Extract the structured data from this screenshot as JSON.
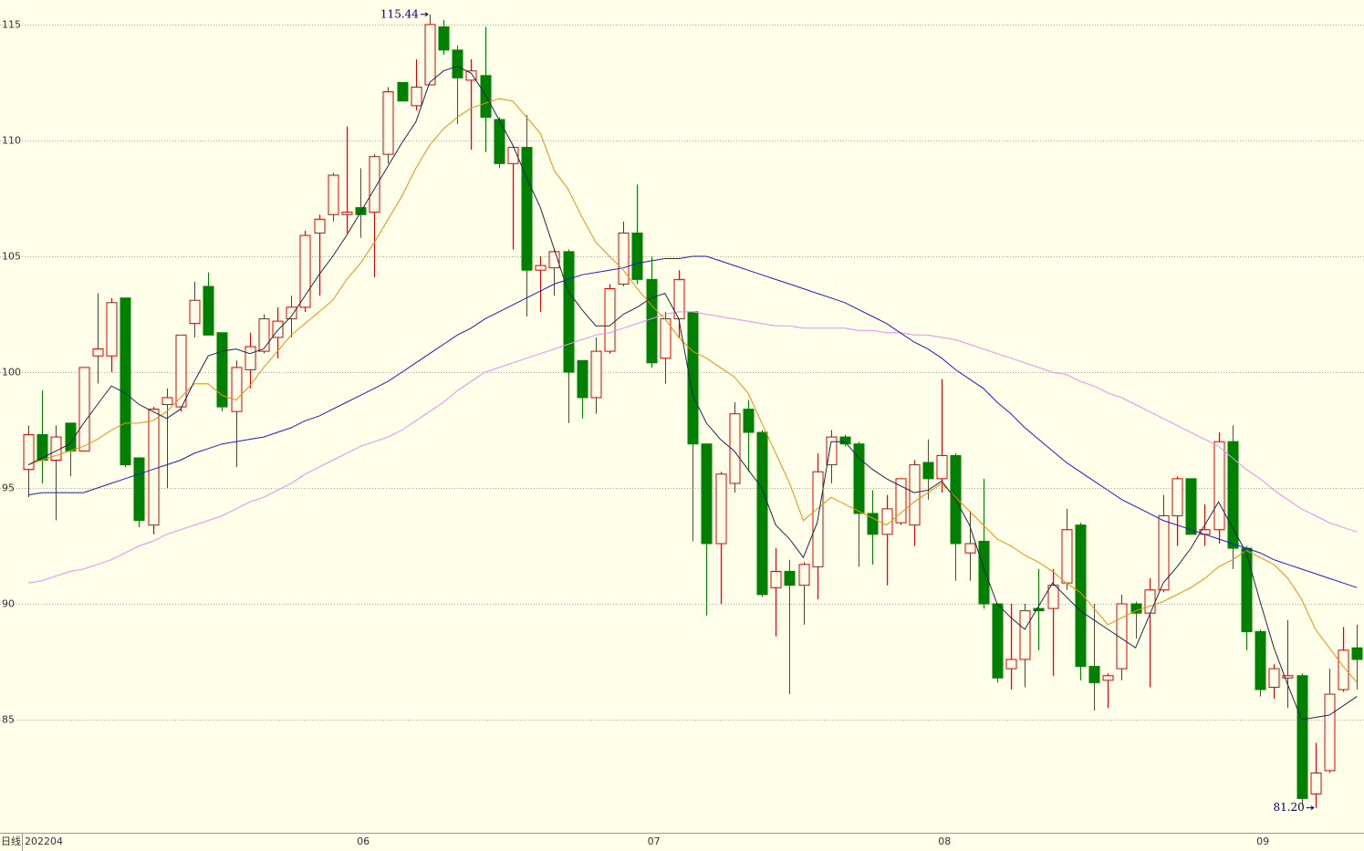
{
  "chart_data": {
    "type": "candlestick",
    "axis_label": "日线",
    "categories": [
      "202204",
      null,
      null,
      null,
      null,
      null,
      null,
      null,
      null,
      null,
      null,
      null,
      null,
      null,
      null,
      null,
      null,
      null,
      null,
      null,
      null,
      null,
      null,
      null,
      "06",
      null,
      null,
      null,
      null,
      null,
      null,
      null,
      null,
      null,
      null,
      null,
      null,
      null,
      null,
      null,
      null,
      null,
      null,
      null,
      null,
      "07",
      null,
      null,
      null,
      null,
      null,
      null,
      null,
      null,
      null,
      null,
      null,
      null,
      null,
      null,
      null,
      null,
      null,
      null,
      null,
      null,
      "08",
      null,
      null,
      null,
      null,
      null,
      null,
      null,
      null,
      null,
      null,
      null,
      null,
      null,
      null,
      null,
      null,
      null,
      null,
      null,
      null,
      null,
      null,
      "09",
      null,
      null,
      null,
      null,
      null,
      null,
      null
    ],
    "open": [
      95.8,
      97.3,
      96.2,
      97.8,
      96.6,
      100.7,
      100.7,
      103.2,
      96.3,
      93.4,
      98.6,
      98.5,
      102.1,
      103.7,
      101.7,
      98.3,
      100.1,
      100.9,
      101.5,
      102.3,
      102.8,
      106.0,
      106.8,
      106.8,
      107.1,
      106.9,
      109.4,
      112.5,
      111.5,
      112.4,
      114.9,
      113.9,
      112.6,
      112.8,
      110.9,
      109.0,
      109.7,
      104.4,
      104.5,
      105.2,
      100.5,
      98.9,
      100.9,
      103.8,
      106.0,
      104.0,
      100.6,
      102.3,
      102.6,
      96.9,
      92.6,
      95.2,
      98.4,
      97.4,
      90.7,
      91.4,
      90.8,
      91.6,
      96.0,
      97.2,
      96.9,
      93.9,
      93.0,
      93.5,
      93.4,
      96.1,
      95.4,
      96.4,
      92.2,
      92.7,
      90.0,
      87.2,
      87.6,
      89.8,
      89.8,
      90.9,
      93.4,
      87.3,
      86.7,
      87.2,
      90.0,
      89.6,
      90.6,
      93.8,
      95.4,
      93.0,
      93.2,
      97.0,
      92.4,
      88.8,
      86.4,
      86.8,
      86.9,
      81.8,
      82.8,
      86.3,
      88.1
    ],
    "high": [
      97.7,
      99.2,
      97.7,
      97.8,
      100.2,
      103.4,
      103.2,
      103.2,
      96.3,
      98.5,
      99.3,
      101.6,
      103.9,
      104.3,
      101.7,
      100.5,
      101.7,
      102.5,
      102.8,
      103.3,
      106.1,
      106.8,
      108.6,
      110.6,
      108.8,
      109.4,
      112.3,
      112.5,
      113.5,
      115.44,
      115.2,
      114.1,
      113.5,
      114.9,
      111.0,
      109.8,
      111.1,
      105.0,
      105.3,
      105.3,
      100.5,
      101.5,
      103.8,
      106.5,
      108.1,
      105.0,
      102.6,
      104.4,
      102.6,
      96.9,
      95.7,
      98.7,
      98.8,
      97.5,
      92.4,
      91.9,
      91.8,
      96.5,
      97.5,
      97.3,
      97.0,
      94.9,
      94.7,
      95.4,
      96.2,
      97.1,
      99.7,
      96.5,
      94.0,
      95.4,
      90.0,
      90.0,
      90.0,
      91.5,
      91.5,
      94.1,
      93.5,
      90.0,
      87.0,
      90.4,
      90.1,
      91.1,
      94.7,
      95.5,
      95.4,
      94.3,
      97.4,
      97.7,
      92.5,
      88.9,
      87.4,
      89.3,
      87.0,
      84.0,
      87.2,
      89.0,
      89.1
    ],
    "low": [
      94.6,
      95.2,
      93.6,
      95.5,
      96.6,
      99.5,
      100.0,
      95.9,
      93.3,
      93.0,
      95.0,
      98.3,
      101.5,
      101.6,
      98.3,
      95.9,
      99.3,
      100.8,
      100.6,
      101.5,
      102.6,
      103.3,
      106.5,
      106.0,
      105.8,
      104.1,
      109.0,
      111.7,
      111.3,
      112.4,
      113.7,
      110.7,
      109.6,
      109.5,
      108.8,
      105.3,
      102.4,
      102.6,
      103.3,
      97.8,
      98.0,
      98.2,
      100.8,
      103.7,
      103.8,
      100.2,
      99.5,
      101.5,
      92.7,
      89.5,
      90.0,
      94.8,
      95.7,
      90.3,
      88.6,
      86.1,
      89.1,
      90.2,
      95.2,
      96.8,
      91.6,
      91.7,
      90.8,
      93.4,
      92.5,
      94.5,
      94.8,
      91.0,
      91.0,
      89.8,
      86.6,
      86.3,
      86.4,
      88.0,
      86.9,
      90.6,
      86.7,
      85.4,
      85.5,
      86.7,
      88.5,
      86.4,
      90.5,
      92.5,
      93.0,
      92.5,
      92.6,
      91.5,
      88.0,
      86.0,
      85.9,
      85.5,
      81.3,
      81.2,
      82.7,
      86.2,
      86.3
    ],
    "close": [
      97.3,
      96.2,
      97.2,
      96.6,
      100.2,
      101.0,
      103.0,
      96.0,
      93.6,
      98.4,
      98.9,
      101.6,
      103.1,
      101.6,
      98.5,
      100.2,
      101.1,
      102.3,
      102.2,
      102.8,
      105.9,
      106.6,
      108.5,
      106.9,
      106.8,
      109.3,
      112.1,
      111.7,
      112.3,
      115.0,
      113.9,
      112.7,
      113.0,
      111.0,
      109.0,
      109.7,
      104.4,
      104.6,
      105.2,
      100.0,
      98.9,
      100.9,
      103.6,
      106.0,
      104.0,
      100.4,
      102.3,
      104.0,
      96.9,
      92.6,
      95.6,
      98.2,
      97.4,
      90.4,
      91.4,
      90.8,
      91.7,
      95.7,
      97.2,
      96.9,
      93.9,
      93.0,
      94.1,
      95.4,
      96.0,
      95.4,
      96.4,
      92.6,
      92.6,
      90.0,
      86.8,
      87.6,
      89.7,
      89.7,
      90.8,
      93.2,
      87.3,
      86.6,
      86.9,
      90.0,
      89.6,
      90.6,
      93.8,
      95.4,
      93.0,
      93.2,
      97.0,
      92.4,
      88.8,
      86.3,
      87.2,
      86.9,
      81.6,
      82.7,
      86.1,
      88.0,
      87.6
    ],
    "up_color": "#e00000",
    "down_color": "#008000",
    "lines": [
      {
        "color": "#e58ff2",
        "values": [
          90.9,
          91.0,
          91.2,
          91.4,
          91.5,
          91.7,
          91.9,
          92.2,
          92.5,
          92.7,
          93.0,
          93.2,
          93.4,
          93.6,
          93.8,
          94.1,
          94.4,
          94.6,
          94.9,
          95.2,
          95.6,
          95.9,
          96.2,
          96.5,
          96.8,
          97.0,
          97.2,
          97.5,
          97.9,
          98.3,
          98.7,
          99.2,
          99.6,
          100.0,
          100.2,
          100.4,
          100.6,
          100.8,
          101.0,
          101.2,
          101.4,
          101.6,
          101.7,
          101.9,
          102.1,
          102.3,
          102.5,
          102.6,
          102.6,
          102.5,
          102.4,
          102.3,
          102.2,
          102.1,
          102.0,
          102.0,
          101.9,
          101.9,
          101.9,
          101.9,
          101.8,
          101.8,
          101.7,
          101.7,
          101.6,
          101.6,
          101.5,
          101.4,
          101.2,
          101.0,
          100.8,
          100.6,
          100.4,
          100.2,
          100.0,
          99.9,
          99.6,
          99.4,
          99.1,
          98.9,
          98.6,
          98.3,
          98.0,
          97.7,
          97.4,
          97.1,
          96.8,
          96.3,
          95.8,
          95.4,
          94.9,
          94.5,
          94.1,
          93.8,
          93.5,
          93.3,
          93.1
        ]
      },
      {
        "color": "#1c1cc8",
        "values": [
          94.7,
          94.8,
          94.8,
          94.8,
          94.8,
          95.0,
          95.2,
          95.4,
          95.6,
          95.8,
          96.0,
          96.2,
          96.5,
          96.7,
          96.9,
          97.0,
          97.1,
          97.2,
          97.4,
          97.6,
          97.9,
          98.1,
          98.4,
          98.7,
          99.0,
          99.3,
          99.6,
          100.0,
          100.4,
          100.8,
          101.2,
          101.6,
          101.9,
          102.3,
          102.6,
          102.9,
          103.2,
          103.5,
          103.8,
          104.0,
          104.2,
          104.3,
          104.4,
          104.5,
          104.7,
          104.8,
          104.9,
          104.9,
          105.0,
          105.0,
          104.8,
          104.6,
          104.4,
          104.2,
          104.0,
          103.8,
          103.6,
          103.4,
          103.2,
          103.0,
          102.7,
          102.4,
          102.1,
          101.7,
          101.3,
          101.0,
          100.6,
          100.1,
          99.7,
          99.3,
          98.7,
          98.2,
          97.6,
          97.1,
          96.6,
          96.1,
          95.7,
          95.3,
          94.9,
          94.5,
          94.2,
          93.9,
          93.6,
          93.4,
          93.2,
          93.0,
          92.8,
          92.6,
          92.4,
          92.2,
          91.9,
          91.7,
          91.5,
          91.3,
          91.1,
          90.9,
          90.7
        ]
      },
      {
        "color": "#f08c10",
        "values": [
          96.0,
          96.2,
          96.4,
          96.6,
          96.8,
          97.1,
          97.5,
          97.8,
          97.8,
          97.9,
          98.3,
          98.9,
          99.5,
          99.5,
          99.0,
          98.8,
          99.4,
          100.2,
          100.9,
          101.6,
          102.1,
          102.6,
          103.1,
          104.0,
          104.7,
          105.6,
          106.6,
          107.6,
          108.8,
          109.8,
          110.5,
          111.0,
          111.4,
          111.6,
          111.8,
          111.7,
          111.0,
          110.3,
          108.7,
          107.9,
          106.7,
          105.6,
          105.0,
          104.4,
          103.6,
          102.9,
          102.3,
          101.5,
          100.9,
          100.6,
          100.2,
          99.8,
          99.1,
          97.8,
          96.5,
          95.2,
          93.6,
          94.1,
          94.6,
          94.3,
          94.0,
          93.7,
          93.4,
          93.9,
          94.4,
          94.8,
          95.2,
          94.6,
          94.0,
          93.4,
          92.8,
          92.5,
          92.1,
          91.8,
          91.4,
          90.9,
          90.5,
          89.8,
          89.1,
          89.4,
          89.7,
          89.9,
          90.1,
          90.4,
          90.7,
          91.1,
          91.6,
          91.9,
          92.3,
          92.0,
          91.7,
          91.1,
          90.2,
          88.9,
          88.1,
          87.3,
          86.6
        ]
      },
      {
        "color": "#1e2850",
        "values": [
          96.0,
          96.3,
          96.6,
          96.9,
          97.8,
          98.6,
          99.4,
          99.1,
          98.6,
          98.3,
          98.0,
          98.4,
          99.6,
          100.7,
          100.9,
          101.0,
          100.8,
          101.0,
          101.8,
          102.4,
          103.3,
          104.2,
          105.0,
          105.9,
          106.9,
          107.9,
          108.9,
          109.9,
          110.8,
          112.5,
          113.0,
          113.2,
          112.9,
          112.0,
          110.9,
          109.8,
          108.4,
          107.1,
          105.3,
          103.5,
          102.7,
          102.0,
          102.0,
          102.5,
          102.8,
          103.2,
          103.4,
          102.3,
          99.0,
          97.8,
          97.1,
          96.6,
          95.8,
          95.0,
          93.4,
          92.8,
          92.0,
          93.5,
          97.0,
          97.0,
          96.3,
          95.8,
          95.4,
          95.1,
          94.8,
          94.9,
          95.3,
          94.5,
          93.4,
          91.6,
          90.0,
          89.4,
          88.9,
          89.9,
          90.9,
          90.3,
          89.7,
          89.3,
          88.9,
          88.5,
          88.1,
          89.5,
          90.9,
          91.6,
          92.4,
          93.4,
          94.4,
          93.3,
          92.2,
          90.1,
          88.1,
          86.5,
          85.0,
          85.1,
          85.2,
          85.6,
          86.0
        ]
      }
    ],
    "ylim": [
      80.12,
      116.06
    ],
    "yticks": [
      85,
      90,
      95,
      100,
      105,
      110,
      115
    ],
    "grid": true,
    "annotations": [
      {
        "label": "115.44",
        "value": 115.44
      },
      {
        "label": "81.20",
        "value": 81.2
      }
    ]
  }
}
